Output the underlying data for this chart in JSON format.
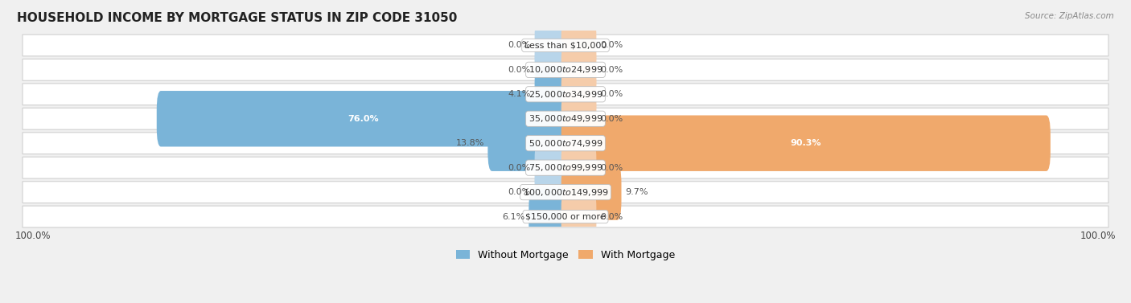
{
  "title": "HOUSEHOLD INCOME BY MORTGAGE STATUS IN ZIP CODE 31050",
  "source": "Source: ZipAtlas.com",
  "categories": [
    "Less than $10,000",
    "$10,000 to $24,999",
    "$25,000 to $34,999",
    "$35,000 to $49,999",
    "$50,000 to $74,999",
    "$75,000 to $99,999",
    "$100,000 to $149,999",
    "$150,000 or more"
  ],
  "without_mortgage": [
    0.0,
    0.0,
    4.1,
    76.0,
    13.8,
    0.0,
    0.0,
    6.1
  ],
  "with_mortgage": [
    0.0,
    0.0,
    0.0,
    0.0,
    90.3,
    0.0,
    9.7,
    0.0
  ],
  "color_without": "#7ab4d8",
  "color_with": "#f0a96c",
  "color_without_light": "#b8d5ea",
  "color_with_light": "#f5ccaa",
  "bg_color": "#f0f0f0",
  "row_bg_color": "#ffffff",
  "max_val": 100.0,
  "label_fontsize": 8.0,
  "title_fontsize": 11,
  "legend_fontsize": 9,
  "stub_size": 5.0
}
